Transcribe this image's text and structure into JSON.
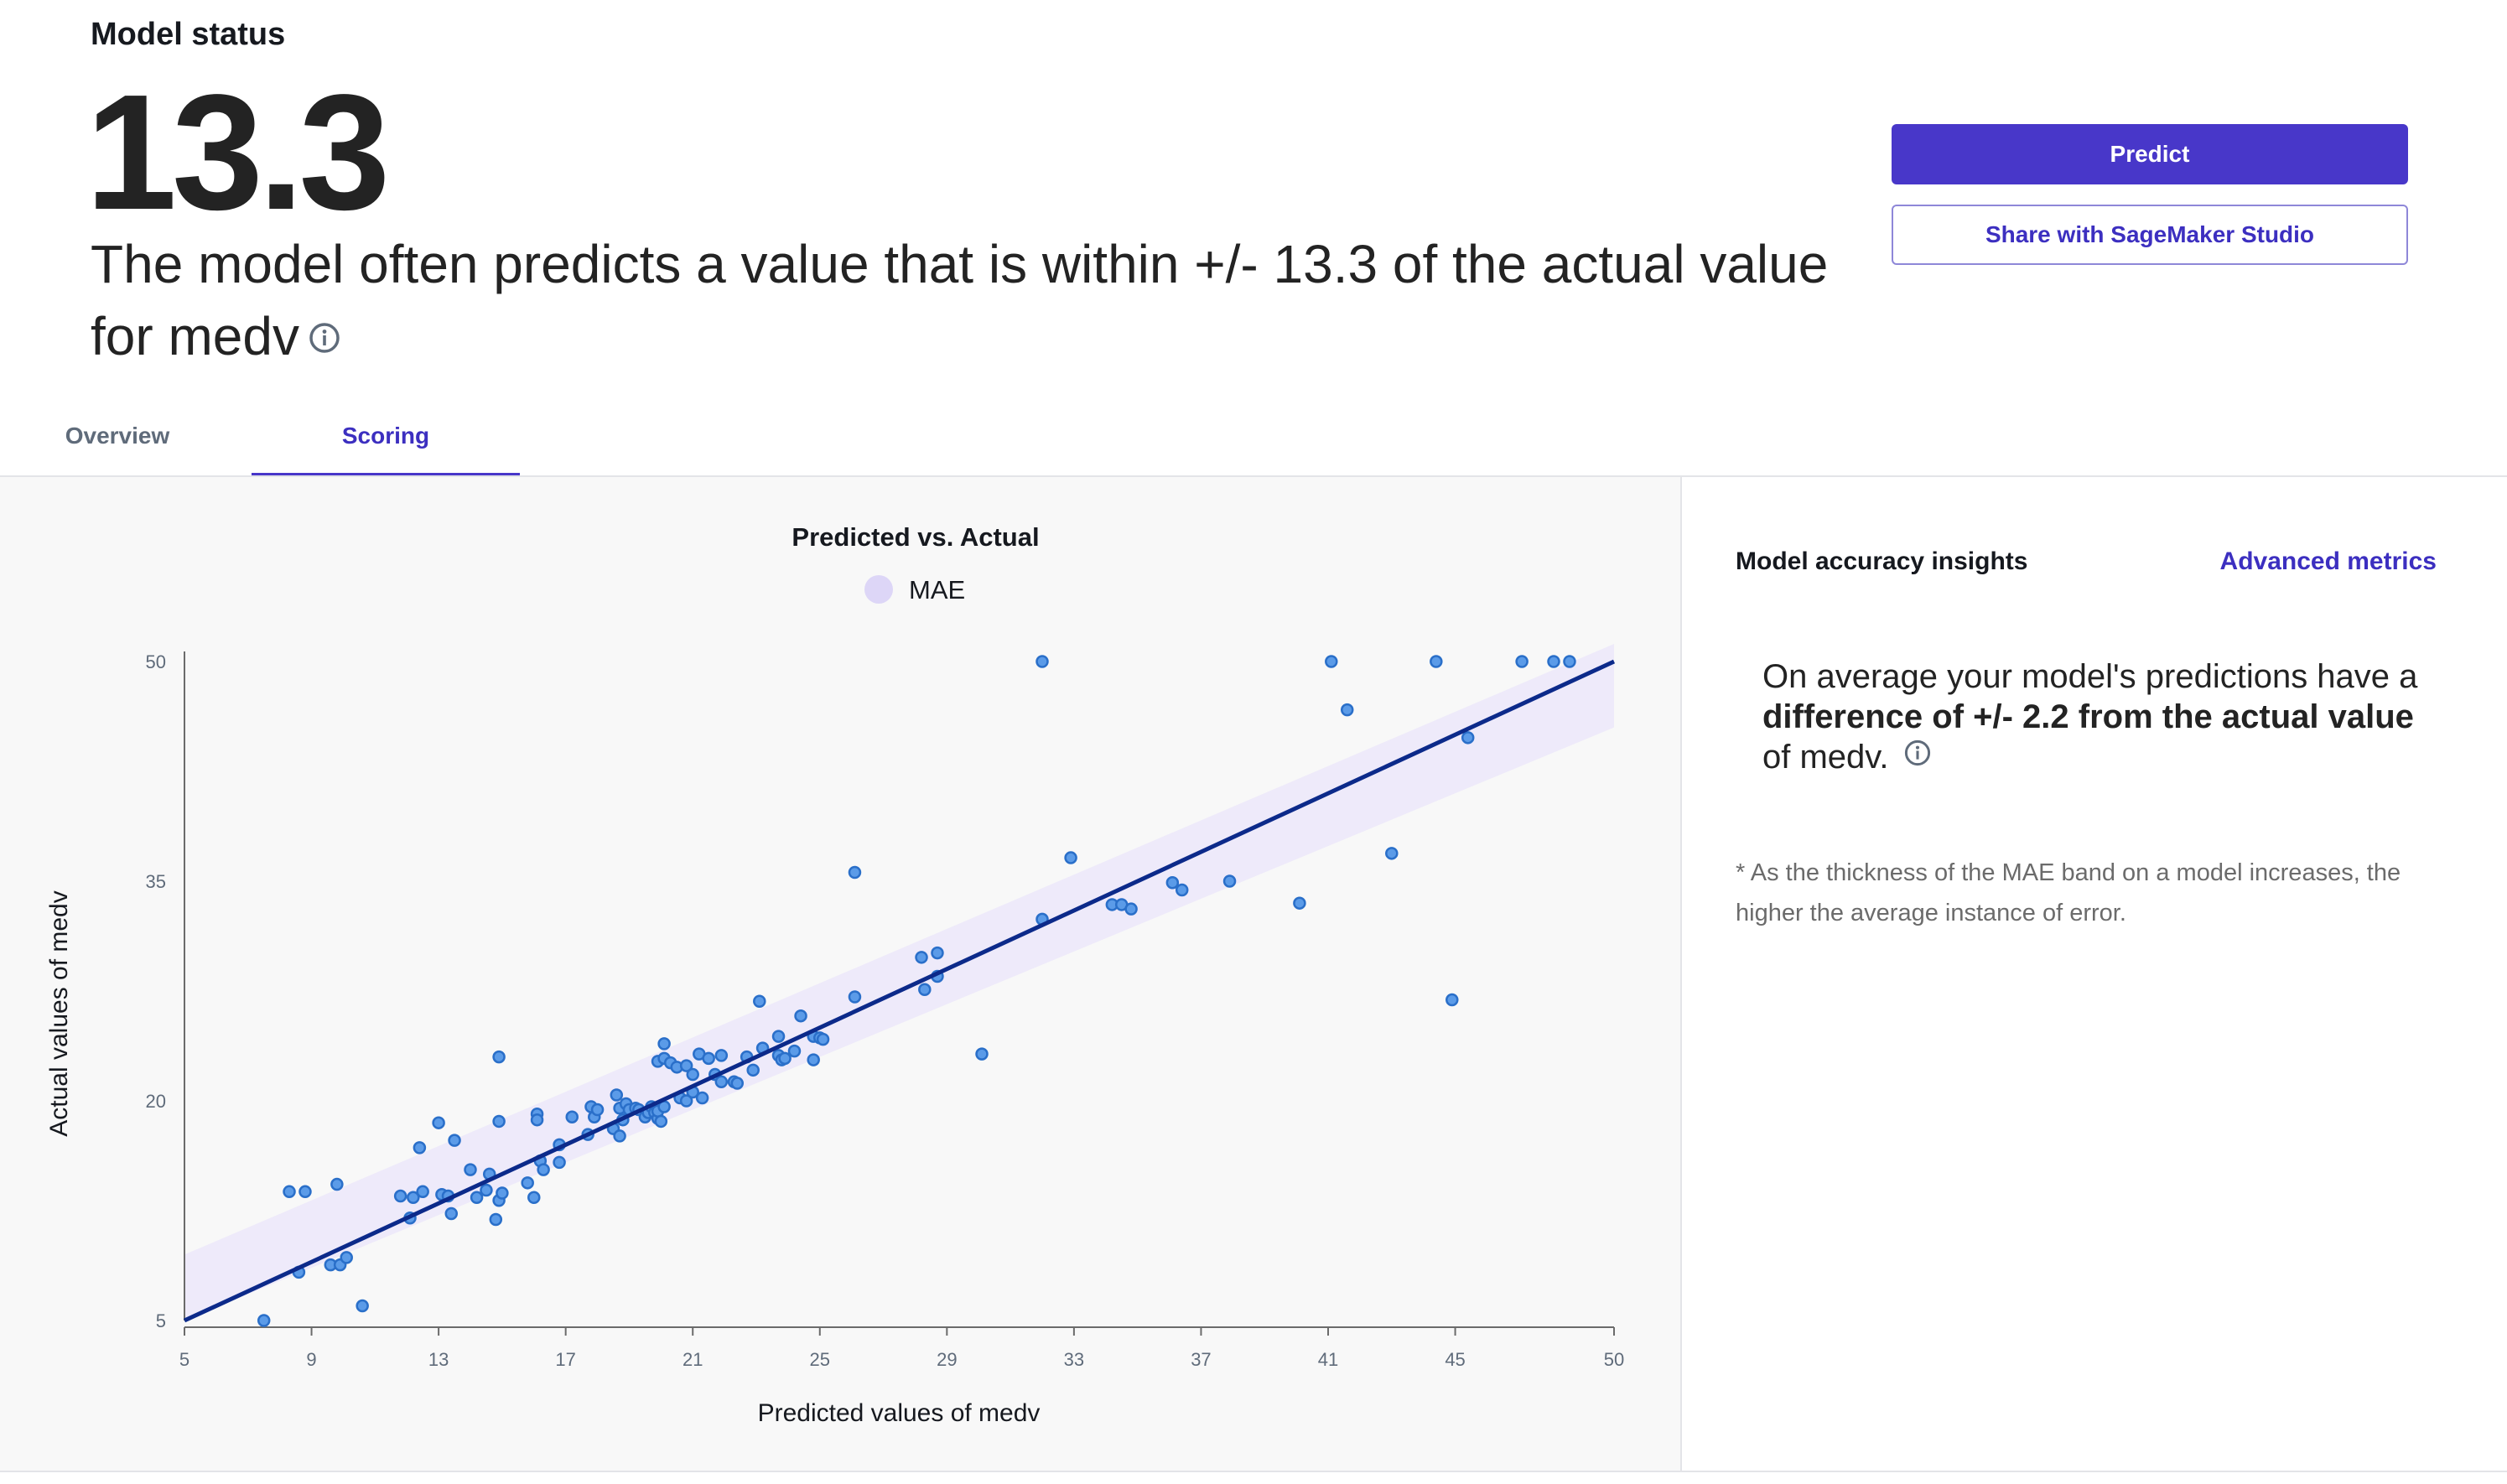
{
  "header": {
    "title": "Model status",
    "metric_value": "13.3",
    "summary_text": "The model often predicts a value that is within +/- 13.3 of the actual value for medv"
  },
  "actions": {
    "predict_label": "Predict",
    "share_label": "Share with SageMaker Studio"
  },
  "tabs": [
    {
      "label": "Overview",
      "active": false
    },
    {
      "label": "Scoring",
      "active": true
    }
  ],
  "colors": {
    "accent": "#4837c9",
    "line": "#0c2a8a",
    "point": "#5b9be8",
    "band": "#ece8fa"
  },
  "insights": {
    "title": "Model accuracy insights",
    "link_label": "Advanced metrics",
    "text_pre": "On average your model's predictions have a ",
    "text_bold": "difference of +/- 2.2 from the actual value",
    "text_post": " of medv.",
    "footnote": "* As the thickness of the MAE band on a model increases, the higher the average instance of error."
  },
  "chart_data": {
    "type": "scatter",
    "title": "Predicted vs. Actual",
    "xlabel": "Predicted values of medv",
    "ylabel": "Actual values of medv",
    "legend": [
      {
        "name": "MAE"
      }
    ],
    "legend_position": "top-center",
    "grid": false,
    "xlim": [
      5,
      50
    ],
    "ylim": [
      5,
      50
    ],
    "x_ticks": [
      5,
      9,
      13,
      17,
      21,
      25,
      29,
      33,
      37,
      41,
      45,
      50
    ],
    "y_ticks": [
      5,
      20,
      35,
      50
    ],
    "mae": 2.2,
    "fit_line": {
      "x": [
        5,
        50
      ],
      "y": [
        5,
        50
      ]
    },
    "points": [
      [
        7.5,
        5.0
      ],
      [
        8.3,
        13.8
      ],
      [
        8.8,
        13.8
      ],
      [
        8.6,
        8.3
      ],
      [
        9.6,
        8.8
      ],
      [
        9.9,
        8.8
      ],
      [
        9.8,
        14.3
      ],
      [
        10.1,
        9.3
      ],
      [
        10.6,
        6.0
      ],
      [
        11.8,
        13.5
      ],
      [
        12.1,
        12.0
      ],
      [
        12.2,
        13.4
      ],
      [
        12.4,
        16.8
      ],
      [
        12.5,
        13.8
      ],
      [
        13.0,
        18.5
      ],
      [
        13.1,
        13.6
      ],
      [
        13.3,
        13.5
      ],
      [
        13.4,
        12.3
      ],
      [
        13.5,
        17.3
      ],
      [
        14.0,
        15.3
      ],
      [
        14.2,
        13.4
      ],
      [
        14.5,
        13.9
      ],
      [
        14.6,
        15.0
      ],
      [
        14.8,
        11.9
      ],
      [
        14.9,
        13.2
      ],
      [
        14.9,
        23.0
      ],
      [
        14.9,
        18.6
      ],
      [
        15.0,
        13.7
      ],
      [
        15.8,
        14.4
      ],
      [
        16.0,
        13.4
      ],
      [
        16.1,
        19.1
      ],
      [
        16.1,
        18.7
      ],
      [
        16.2,
        15.9
      ],
      [
        16.3,
        15.3
      ],
      [
        16.8,
        15.8
      ],
      [
        16.8,
        17.0
      ],
      [
        17.2,
        18.9
      ],
      [
        17.7,
        17.7
      ],
      [
        17.8,
        19.6
      ],
      [
        17.9,
        18.9
      ],
      [
        18.0,
        19.4
      ],
      [
        18.5,
        18.1
      ],
      [
        18.6,
        20.4
      ],
      [
        18.7,
        19.5
      ],
      [
        18.7,
        17.6
      ],
      [
        18.8,
        18.7
      ],
      [
        18.9,
        19.8
      ],
      [
        19.0,
        19.4
      ],
      [
        19.2,
        19.5
      ],
      [
        19.3,
        19.4
      ],
      [
        19.5,
        18.9
      ],
      [
        19.6,
        19.2
      ],
      [
        19.7,
        19.6
      ],
      [
        19.8,
        19.2
      ],
      [
        19.9,
        18.8
      ],
      [
        19.9,
        19.3
      ],
      [
        19.9,
        22.7
      ],
      [
        20.0,
        18.6
      ],
      [
        20.1,
        19.6
      ],
      [
        20.1,
        22.9
      ],
      [
        20.1,
        23.9
      ],
      [
        20.3,
        22.6
      ],
      [
        20.5,
        22.3
      ],
      [
        20.6,
        20.2
      ],
      [
        20.8,
        22.4
      ],
      [
        20.8,
        20.0
      ],
      [
        21.0,
        20.6
      ],
      [
        21.0,
        21.8
      ],
      [
        21.2,
        23.2
      ],
      [
        21.3,
        20.2
      ],
      [
        21.5,
        22.9
      ],
      [
        21.7,
        21.8
      ],
      [
        21.9,
        23.1
      ],
      [
        21.9,
        21.3
      ],
      [
        22.3,
        21.3
      ],
      [
        22.4,
        21.2
      ],
      [
        22.7,
        23.0
      ],
      [
        22.9,
        22.1
      ],
      [
        23.1,
        26.8
      ],
      [
        23.2,
        23.6
      ],
      [
        23.7,
        24.4
      ],
      [
        23.7,
        23.1
      ],
      [
        23.8,
        22.8
      ],
      [
        23.9,
        22.9
      ],
      [
        24.2,
        23.4
      ],
      [
        24.4,
        25.8
      ],
      [
        24.8,
        22.8
      ],
      [
        24.8,
        24.4
      ],
      [
        25.0,
        24.3
      ],
      [
        25.1,
        24.2
      ],
      [
        26.1,
        35.6
      ],
      [
        26.1,
        27.1
      ],
      [
        28.2,
        29.8
      ],
      [
        28.3,
        27.6
      ],
      [
        28.7,
        30.1
      ],
      [
        28.7,
        28.5
      ],
      [
        30.1,
        23.2
      ],
      [
        32.0,
        50.0
      ],
      [
        32.0,
        32.4
      ],
      [
        32.9,
        36.6
      ],
      [
        34.2,
        33.4
      ],
      [
        34.5,
        33.4
      ],
      [
        34.8,
        33.1
      ],
      [
        36.1,
        34.9
      ],
      [
        36.4,
        34.4
      ],
      [
        37.9,
        35.0
      ],
      [
        40.1,
        33.5
      ],
      [
        41.1,
        50.0
      ],
      [
        41.6,
        46.7
      ],
      [
        43.0,
        36.9
      ],
      [
        44.4,
        50.0
      ],
      [
        44.9,
        26.9
      ],
      [
        45.4,
        44.8
      ],
      [
        47.1,
        50.0
      ],
      [
        48.1,
        50.0
      ],
      [
        48.6,
        50.0
      ]
    ]
  }
}
